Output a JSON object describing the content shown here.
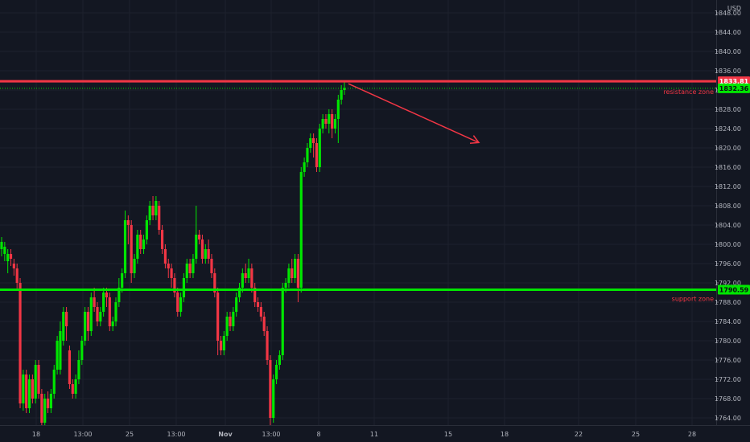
{
  "chart_data": {
    "type": "candlestick",
    "instrument_currency": "USD",
    "grid": true,
    "y_axis": {
      "unit": "USD",
      "range": [
        1761,
        1853
      ],
      "ticks": [
        1848,
        1844,
        1840,
        1836,
        1832,
        1828,
        1824,
        1820,
        1816,
        1812,
        1808,
        1804,
        1800,
        1796,
        1792,
        1788,
        1784,
        1780,
        1776,
        1772,
        1768,
        1764
      ],
      "tick_labels": [
        "1848.00",
        "1844.00",
        "1840.00",
        "1836.00",
        "1832.00",
        "1828.00",
        "1824.00",
        "1820.00",
        "1816.00",
        "1812.00",
        "1808.00",
        "1804.00",
        "1800.00",
        "1796.00",
        "1792.00",
        "1788.00",
        "1784.00",
        "1780.00",
        "1776.00",
        "1772.00",
        "1768.00",
        "1764.00"
      ]
    },
    "x_axis": {
      "range": [
        0,
        890
      ],
      "ticks": [
        {
          "x": 45,
          "label": "18"
        },
        {
          "x": 103,
          "label": "13:00"
        },
        {
          "x": 161,
          "label": "25"
        },
        {
          "x": 219,
          "label": "13:00"
        },
        {
          "x": 280,
          "label": "Nov"
        },
        {
          "x": 337,
          "label": "13:00"
        },
        {
          "x": 396,
          "label": "8"
        },
        {
          "x": 465,
          "label": "11"
        },
        {
          "x": 557,
          "label": "15"
        },
        {
          "x": 627,
          "label": "18"
        },
        {
          "x": 719,
          "label": "22"
        },
        {
          "x": 790,
          "label": "25"
        },
        {
          "x": 860,
          "label": "28"
        }
      ]
    },
    "levels": [
      {
        "name": "resistance zone",
        "price": 1833.81,
        "badge": "1833.81",
        "color": "#f23645"
      },
      {
        "name": "support zone",
        "price": 1790.59,
        "badge": "1790.59",
        "color": "#00e600"
      }
    ],
    "last_price": {
      "price": 1832.36,
      "badge": "1832.36",
      "color": "#00e600"
    },
    "projection_arrow": {
      "from": {
        "x": 433,
        "price": 1833.3
      },
      "to": {
        "x": 595,
        "price": 1821.1
      },
      "color": "#f23645"
    },
    "candles": [
      [
        1799,
        1800.5,
        1797.5,
        1801.5
      ],
      [
        1798,
        1799.5,
        1796.5,
        1800.5
      ],
      [
        1796.5,
        1798,
        1794,
        1799
      ],
      [
        1798,
        1797,
        1795.5,
        1799
      ],
      [
        1796,
        1795,
        1793.5,
        1797
      ],
      [
        1795,
        1792,
        1790.5,
        1796
      ],
      [
        1792,
        1767,
        1766,
        1793
      ],
      [
        1767,
        1773,
        1765.5,
        1774
      ],
      [
        1773,
        1766,
        1765,
        1774
      ],
      [
        1766,
        1772,
        1765,
        1773
      ],
      [
        1772,
        1768,
        1767,
        1773
      ],
      [
        1768,
        1775,
        1767,
        1776
      ],
      [
        1775,
        1769,
        1768,
        1776
      ],
      [
        1769,
        1763,
        1761.5,
        1770
      ],
      [
        1763,
        1768,
        1762,
        1769
      ],
      [
        1768,
        1766,
        1765,
        1769.5
      ],
      [
        1766,
        1769,
        1765,
        1770
      ],
      [
        1769,
        1774,
        1768,
        1775
      ],
      [
        1774,
        1780,
        1773,
        1781
      ],
      [
        1774,
        1782,
        1773,
        1784
      ],
      [
        1780,
        1786,
        1779,
        1787
      ],
      [
        1786,
        1783,
        1780,
        1787
      ],
      [
        1778,
        1771,
        1770,
        1779
      ],
      [
        1771,
        1769,
        1768,
        1772
      ],
      [
        1769,
        1772,
        1768,
        1773
      ],
      [
        1772,
        1776,
        1771,
        1778
      ],
      [
        1776,
        1780,
        1775,
        1781
      ],
      [
        1780,
        1786,
        1779,
        1787
      ],
      [
        1786,
        1782,
        1780,
        1787
      ],
      [
        1782,
        1789,
        1781,
        1790
      ],
      [
        1789,
        1787,
        1786,
        1791
      ],
      [
        1787,
        1784,
        1783,
        1788
      ],
      [
        1784,
        1786,
        1783,
        1787
      ],
      [
        1786,
        1790,
        1785,
        1791
      ],
      [
        1790,
        1789,
        1787,
        1791
      ],
      [
        1789,
        1783,
        1782,
        1790
      ],
      [
        1783,
        1784,
        1782,
        1785
      ],
      [
        1784,
        1788,
        1783,
        1789
      ],
      [
        1788,
        1791,
        1787,
        1793
      ],
      [
        1791,
        1794,
        1790,
        1795
      ],
      [
        1794,
        1805,
        1793,
        1807
      ],
      [
        1805,
        1804,
        1800,
        1806
      ],
      [
        1804,
        1794,
        1792,
        1805
      ],
      [
        1794,
        1797,
        1793,
        1798
      ],
      [
        1797,
        1802,
        1796,
        1803
      ],
      [
        1802,
        1799,
        1798,
        1803
      ],
      [
        1799,
        1801,
        1798,
        1802
      ],
      [
        1801,
        1805,
        1800,
        1806
      ],
      [
        1805,
        1808,
        1804,
        1809
      ],
      [
        1808,
        1806,
        1805,
        1810
      ],
      [
        1806,
        1809,
        1805,
        1810
      ],
      [
        1808,
        1803,
        1802,
        1809
      ],
      [
        1803,
        1799,
        1798,
        1804
      ],
      [
        1799,
        1796,
        1795,
        1800
      ],
      [
        1796,
        1795,
        1793,
        1797
      ],
      [
        1795,
        1793,
        1791,
        1796
      ],
      [
        1793,
        1790,
        1789,
        1794
      ],
      [
        1790,
        1786,
        1785,
        1791
      ],
      [
        1786,
        1789,
        1785,
        1790
      ],
      [
        1789,
        1793,
        1788,
        1794
      ],
      [
        1793,
        1796,
        1792,
        1797
      ],
      [
        1796,
        1794,
        1793,
        1797
      ],
      [
        1794,
        1797,
        1793,
        1798
      ],
      [
        1797,
        1802,
        1796,
        1808
      ],
      [
        1802,
        1801,
        1800,
        1803
      ],
      [
        1801,
        1797,
        1796,
        1802
      ],
      [
        1797,
        1799,
        1796,
        1800
      ],
      [
        1799,
        1797,
        1796,
        1801
      ],
      [
        1797,
        1794,
        1793,
        1798
      ],
      [
        1794,
        1790,
        1789,
        1795
      ],
      [
        1790,
        1780,
        1777,
        1791
      ],
      [
        1780,
        1778,
        1777,
        1781
      ],
      [
        1778,
        1781,
        1777,
        1782
      ],
      [
        1781,
        1785,
        1780,
        1786
      ],
      [
        1785,
        1783,
        1782,
        1786
      ],
      [
        1783,
        1786,
        1782,
        1787
      ],
      [
        1786,
        1789,
        1785,
        1790
      ],
      [
        1789,
        1791,
        1788,
        1792
      ],
      [
        1791,
        1794,
        1790,
        1795
      ],
      [
        1794,
        1793,
        1792,
        1796
      ],
      [
        1793,
        1795,
        1792,
        1797
      ],
      [
        1795,
        1791,
        1790,
        1796
      ],
      [
        1791,
        1788,
        1787,
        1792
      ],
      [
        1788,
        1787,
        1786,
        1789
      ],
      [
        1787,
        1785,
        1784,
        1788
      ],
      [
        1785,
        1782,
        1781,
        1786
      ],
      [
        1782,
        1776,
        1775,
        1783
      ],
      [
        1776,
        1764,
        1762,
        1777
      ],
      [
        1764,
        1772,
        1763,
        1773
      ],
      [
        1772,
        1775,
        1771,
        1776
      ],
      [
        1775,
        1777,
        1774,
        1778
      ],
      [
        1777,
        1791,
        1776,
        1792
      ],
      [
        1791,
        1792,
        1790,
        1793
      ],
      [
        1792,
        1795,
        1791,
        1796
      ],
      [
        1795,
        1793,
        1792,
        1797
      ],
      [
        1793,
        1797,
        1792,
        1798
      ],
      [
        1797,
        1791,
        1788,
        1798
      ],
      [
        1791,
        1815,
        1790,
        1816
      ],
      [
        1815,
        1817,
        1814,
        1818
      ],
      [
        1817,
        1820,
        1816,
        1821
      ],
      [
        1820,
        1822,
        1819,
        1823
      ],
      [
        1822,
        1821,
        1818,
        1823
      ],
      [
        1821,
        1816,
        1815,
        1822
      ],
      [
        1816,
        1824,
        1815,
        1825
      ],
      [
        1824,
        1826,
        1823,
        1827
      ],
      [
        1826,
        1825,
        1824,
        1827
      ],
      [
        1825,
        1827,
        1823,
        1828
      ],
      [
        1827,
        1824,
        1822,
        1828
      ],
      [
        1824,
        1826,
        1823,
        1827
      ],
      [
        1826,
        1830,
        1821,
        1831
      ],
      [
        1830,
        1832,
        1829,
        1833
      ],
      [
        1832,
        1832.4,
        1831,
        1834
      ]
    ]
  }
}
